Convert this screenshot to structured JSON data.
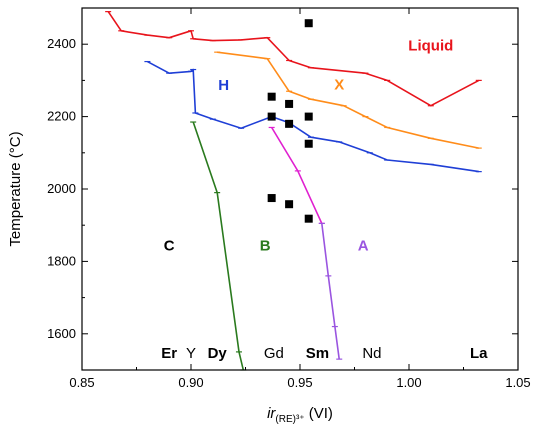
{
  "chart_data": {
    "type": "line",
    "xlabel_main": "ir",
    "xlabel_sub": "(RE)³⁺",
    "xlabel_suffix": " (VI)",
    "ylabel": "Temperature (°C)",
    "xlim": [
      0.85,
      1.05
    ],
    "ylim": [
      1500,
      2500
    ],
    "xticks": [
      0.85,
      0.9,
      0.95,
      1.0,
      1.05
    ],
    "xtick_labels": [
      "0.85",
      "0.90",
      "0.95",
      "1.00",
      "1.05"
    ],
    "yticks": [
      1600,
      1800,
      2000,
      2200,
      2400
    ],
    "ytick_labels": [
      "1600",
      "1800",
      "2000",
      "2200",
      "2400"
    ],
    "grid": false,
    "series": [
      {
        "color": "#e8141c",
        "points": [
          [
            0.862,
            2490
          ],
          [
            0.868,
            2437
          ],
          [
            0.88,
            2425
          ],
          [
            0.89,
            2418
          ],
          [
            0.9,
            2437
          ],
          [
            0.901,
            2415
          ],
          [
            0.91,
            2410
          ],
          [
            0.923,
            2412
          ],
          [
            0.935,
            2418
          ],
          [
            0.945,
            2355
          ],
          [
            0.955,
            2335
          ],
          [
            0.98,
            2320
          ],
          [
            0.99,
            2300
          ],
          [
            1.01,
            2230
          ],
          [
            1.032,
            2300
          ]
        ]
      },
      {
        "color": "#ff8c1a",
        "points": [
          [
            0.912,
            2378
          ],
          [
            0.935,
            2360
          ],
          [
            0.945,
            2270
          ],
          [
            0.955,
            2248
          ],
          [
            0.97,
            2230
          ],
          [
            0.98,
            2200
          ],
          [
            0.99,
            2170
          ],
          [
            1.01,
            2140
          ],
          [
            1.032,
            2113
          ]
        ]
      },
      {
        "color": "#1f3fd6",
        "points": [
          [
            0.88,
            2352
          ],
          [
            0.89,
            2320
          ],
          [
            0.9,
            2325
          ],
          [
            0.901,
            2330
          ],
          [
            0.902,
            2210
          ],
          [
            0.91,
            2193
          ],
          [
            0.923,
            2168
          ],
          [
            0.937,
            2200
          ],
          [
            0.945,
            2183
          ],
          [
            0.955,
            2143
          ],
          [
            0.968,
            2130
          ],
          [
            0.982,
            2100
          ],
          [
            0.99,
            2080
          ],
          [
            1.01,
            2068
          ],
          [
            1.032,
            2048
          ]
        ]
      },
      {
        "color": "#2a7a1e",
        "points": [
          [
            0.901,
            2185
          ],
          [
            0.912,
            1990
          ],
          [
            0.922,
            1550
          ],
          [
            0.924,
            1500
          ]
        ]
      },
      {
        "color": "#e020d0",
        "points": [
          [
            0.937,
            2170
          ],
          [
            0.949,
            2050
          ],
          [
            0.96,
            1905
          ]
        ]
      },
      {
        "color": "#9a55e0",
        "points": [
          [
            0.96,
            1905
          ],
          [
            0.963,
            1760
          ],
          [
            0.966,
            1620
          ],
          [
            0.968,
            1530
          ]
        ]
      }
    ],
    "markers": [
      [
        0.937,
        2255
      ],
      [
        0.937,
        2200
      ],
      [
        0.945,
        2235
      ],
      [
        0.945,
        2180
      ],
      [
        0.954,
        2458
      ],
      [
        0.954,
        2200
      ],
      [
        0.954,
        2125
      ],
      [
        0.937,
        1975
      ],
      [
        0.945,
        1958
      ],
      [
        0.954,
        1918
      ]
    ],
    "region_labels": [
      {
        "text": "Liquid",
        "x": 1.01,
        "y": 2382,
        "color": "#e8141c",
        "bold": true,
        "size": 15
      },
      {
        "text": "X",
        "x": 0.968,
        "y": 2275,
        "color": "#ff8c1a",
        "bold": true,
        "size": 15
      },
      {
        "text": "H",
        "x": 0.915,
        "y": 2273,
        "color": "#1f3fd6",
        "bold": true,
        "size": 15
      },
      {
        "text": "C",
        "x": 0.89,
        "y": 1830,
        "color": "#000000",
        "bold": true,
        "size": 15
      },
      {
        "text": "B",
        "x": 0.934,
        "y": 1830,
        "color": "#2a7a1e",
        "bold": true,
        "size": 15
      },
      {
        "text": "A",
        "x": 0.979,
        "y": 1830,
        "color": "#9a55e0",
        "bold": true,
        "size": 15
      }
    ],
    "element_labels": [
      {
        "text": "Er",
        "x": 0.89,
        "bold": true
      },
      {
        "text": "Y",
        "x": 0.9,
        "bold": false
      },
      {
        "text": "Dy",
        "x": 0.912,
        "bold": true
      },
      {
        "text": "Gd",
        "x": 0.938,
        "bold": false
      },
      {
        "text": "Sm",
        "x": 0.958,
        "bold": true
      },
      {
        "text": "Nd",
        "x": 0.983,
        "bold": false
      },
      {
        "text": "La",
        "x": 1.032,
        "bold": true
      }
    ]
  }
}
